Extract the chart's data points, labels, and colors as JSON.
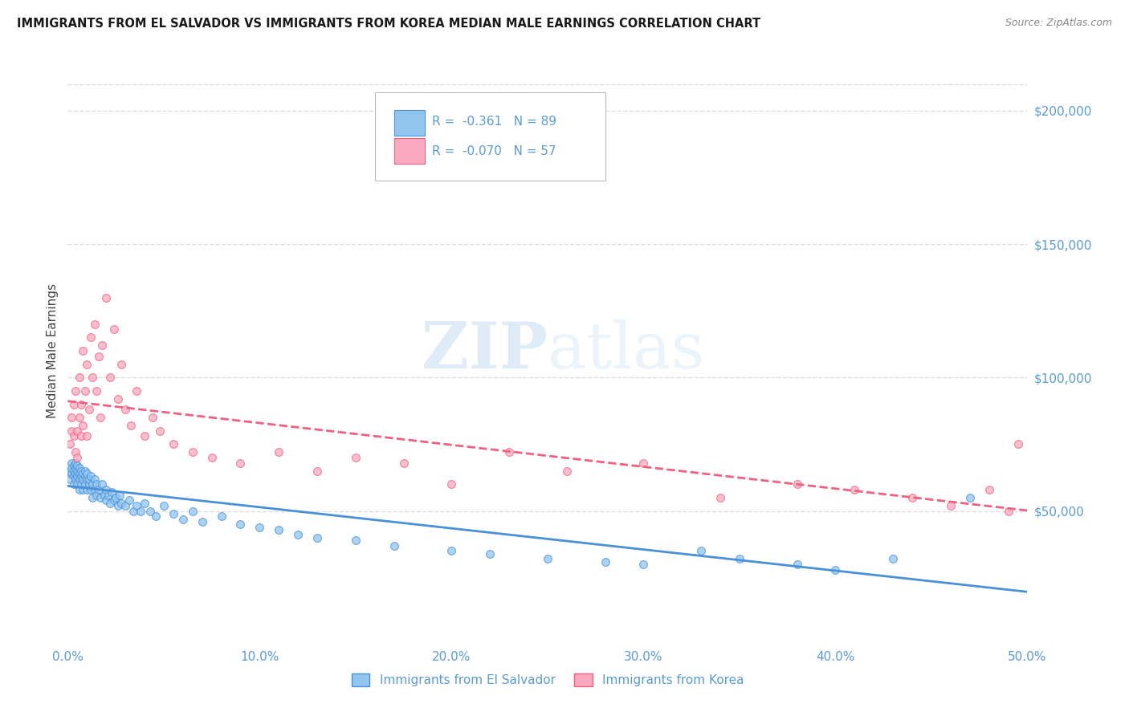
{
  "title": "IMMIGRANTS FROM EL SALVADOR VS IMMIGRANTS FROM KOREA MEDIAN MALE EARNINGS CORRELATION CHART",
  "source": "Source: ZipAtlas.com",
  "ylabel": "Median Male Earnings",
  "xlim": [
    0.0,
    0.5
  ],
  "ylim": [
    0,
    220000
  ],
  "xticks": [
    0.0,
    0.1,
    0.2,
    0.3,
    0.4,
    0.5
  ],
  "xticklabels": [
    "0.0%",
    "10.0%",
    "20.0%",
    "30.0%",
    "40.0%",
    "50.0%"
  ],
  "yticks": [
    0,
    50000,
    100000,
    150000,
    200000
  ],
  "yticklabels": [
    "",
    "$50,000",
    "$100,000",
    "$150,000",
    "$200,000"
  ],
  "color_salvador": "#92c5f0",
  "color_korea": "#f9a8c0",
  "trendline_color_salvador": "#4a90d9",
  "trendline_color_korea": "#f06080",
  "R_salvador": -0.361,
  "N_salvador": 89,
  "R_korea": -0.07,
  "N_korea": 57,
  "legend_label_salvador": "Immigrants from El Salvador",
  "legend_label_korea": "Immigrants from Korea",
  "watermark_zip": "ZIP",
  "watermark_atlas": "atlas",
  "background_color": "#ffffff",
  "grid_color": "#dddddd",
  "axis_color": "#5b9bd5",
  "salvador_x": [
    0.001,
    0.001,
    0.002,
    0.002,
    0.002,
    0.003,
    0.003,
    0.003,
    0.003,
    0.004,
    0.004,
    0.004,
    0.004,
    0.005,
    0.005,
    0.005,
    0.005,
    0.006,
    0.006,
    0.006,
    0.006,
    0.007,
    0.007,
    0.007,
    0.008,
    0.008,
    0.008,
    0.009,
    0.009,
    0.009,
    0.01,
    0.01,
    0.01,
    0.011,
    0.011,
    0.012,
    0.012,
    0.013,
    0.013,
    0.014,
    0.014,
    0.015,
    0.015,
    0.016,
    0.017,
    0.018,
    0.019,
    0.02,
    0.02,
    0.021,
    0.022,
    0.023,
    0.024,
    0.025,
    0.026,
    0.027,
    0.028,
    0.03,
    0.032,
    0.034,
    0.036,
    0.038,
    0.04,
    0.043,
    0.046,
    0.05,
    0.055,
    0.06,
    0.065,
    0.07,
    0.08,
    0.09,
    0.1,
    0.11,
    0.12,
    0.13,
    0.15,
    0.17,
    0.2,
    0.22,
    0.25,
    0.28,
    0.3,
    0.33,
    0.35,
    0.38,
    0.4,
    0.43,
    0.47
  ],
  "salvador_y": [
    65000,
    62000,
    68000,
    64000,
    66000,
    63000,
    67000,
    65000,
    60000,
    64000,
    66000,
    62000,
    68000,
    63000,
    65000,
    60000,
    67000,
    64000,
    62000,
    66000,
    58000,
    63000,
    65000,
    60000,
    62000,
    64000,
    58000,
    63000,
    60000,
    65000,
    62000,
    58000,
    64000,
    60000,
    62000,
    58000,
    63000,
    60000,
    55000,
    62000,
    58000,
    60000,
    56000,
    58000,
    55000,
    60000,
    56000,
    58000,
    54000,
    56000,
    53000,
    57000,
    54000,
    55000,
    52000,
    56000,
    53000,
    52000,
    54000,
    50000,
    52000,
    50000,
    53000,
    50000,
    48000,
    52000,
    49000,
    47000,
    50000,
    46000,
    48000,
    45000,
    44000,
    43000,
    41000,
    40000,
    39000,
    37000,
    35000,
    34000,
    32000,
    31000,
    30000,
    35000,
    32000,
    30000,
    28000,
    32000,
    55000
  ],
  "korea_x": [
    0.001,
    0.002,
    0.002,
    0.003,
    0.003,
    0.004,
    0.004,
    0.005,
    0.005,
    0.006,
    0.006,
    0.007,
    0.007,
    0.008,
    0.008,
    0.009,
    0.01,
    0.01,
    0.011,
    0.012,
    0.013,
    0.014,
    0.015,
    0.016,
    0.017,
    0.018,
    0.02,
    0.022,
    0.024,
    0.026,
    0.028,
    0.03,
    0.033,
    0.036,
    0.04,
    0.044,
    0.048,
    0.055,
    0.065,
    0.075,
    0.09,
    0.11,
    0.13,
    0.15,
    0.175,
    0.2,
    0.23,
    0.26,
    0.3,
    0.34,
    0.38,
    0.41,
    0.44,
    0.46,
    0.48,
    0.49,
    0.495
  ],
  "korea_y": [
    75000,
    80000,
    85000,
    78000,
    90000,
    72000,
    95000,
    80000,
    70000,
    85000,
    100000,
    78000,
    90000,
    110000,
    82000,
    95000,
    105000,
    78000,
    88000,
    115000,
    100000,
    120000,
    95000,
    108000,
    85000,
    112000,
    130000,
    100000,
    118000,
    92000,
    105000,
    88000,
    82000,
    95000,
    78000,
    85000,
    80000,
    75000,
    72000,
    70000,
    68000,
    72000,
    65000,
    70000,
    68000,
    60000,
    72000,
    65000,
    68000,
    55000,
    60000,
    58000,
    55000,
    52000,
    58000,
    50000,
    75000
  ]
}
